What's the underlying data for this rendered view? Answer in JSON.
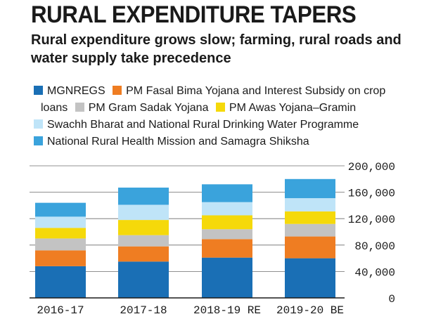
{
  "title": "RURAL EXPENDITURE  TAPERS",
  "subtitle": "Rural expenditure grows slow; farming, rural roads and water supply take precedence",
  "legend": {
    "rows": [
      [
        {
          "label": "MGNREGS",
          "color": "#1a6fb5"
        },
        {
          "label": "PM Fasal Bima Yojana and Interest Subsidy on crop",
          "color": "#ef7d22"
        }
      ],
      [
        {
          "label": "loans",
          "color": null
        },
        {
          "label": "PM Gram Sadak Yojana",
          "color": "#c3c3c3"
        },
        {
          "label": "PM Awas Yojana–Gramin",
          "color": "#f5d90a"
        }
      ],
      [
        {
          "label": "Swachh Bharat and National Rural Drinking Water Programme",
          "color": "#bfe4f8"
        }
      ],
      [
        {
          "label": "National Rural Health Mission and Samagra Shiksha",
          "color": "#3aa3dc"
        }
      ]
    ]
  },
  "chart_data": {
    "type": "bar",
    "stacked": true,
    "categories": [
      "2016-17",
      "2017-18",
      "2018-19 RE",
      "2019-20 BE"
    ],
    "y_ticks": [
      "0",
      "40,000",
      "80,000",
      "120,000",
      "160,000",
      "200,000"
    ],
    "ylim": [
      0,
      200000
    ],
    "series": [
      {
        "name": "MGNREGS",
        "color": "#1a6fb5",
        "values": [
          48000,
          55000,
          61000,
          60000
        ]
      },
      {
        "name": "PM Fasal Bima Yojana and Interest Subsidy on crop loans",
        "color": "#ef7d22",
        "values": [
          24000,
          23000,
          28000,
          33000
        ]
      },
      {
        "name": "PM Gram Sadak Yojana",
        "color": "#c3c3c3",
        "values": [
          18000,
          17000,
          15000,
          19000
        ]
      },
      {
        "name": "PM Awas Yojana–Gramin",
        "color": "#f5d90a",
        "values": [
          16000,
          23000,
          21000,
          19000
        ]
      },
      {
        "name": "Swachh Bharat and National Rural Drinking Water Programme",
        "color": "#bfe4f8",
        "values": [
          17000,
          23000,
          20000,
          20000
        ]
      },
      {
        "name": "National Rural Health Mission and Samagra Shiksha",
        "color": "#3aa3dc",
        "values": [
          21000,
          26000,
          27000,
          29000
        ]
      }
    ],
    "grid": true,
    "y_axis_side": "right"
  }
}
